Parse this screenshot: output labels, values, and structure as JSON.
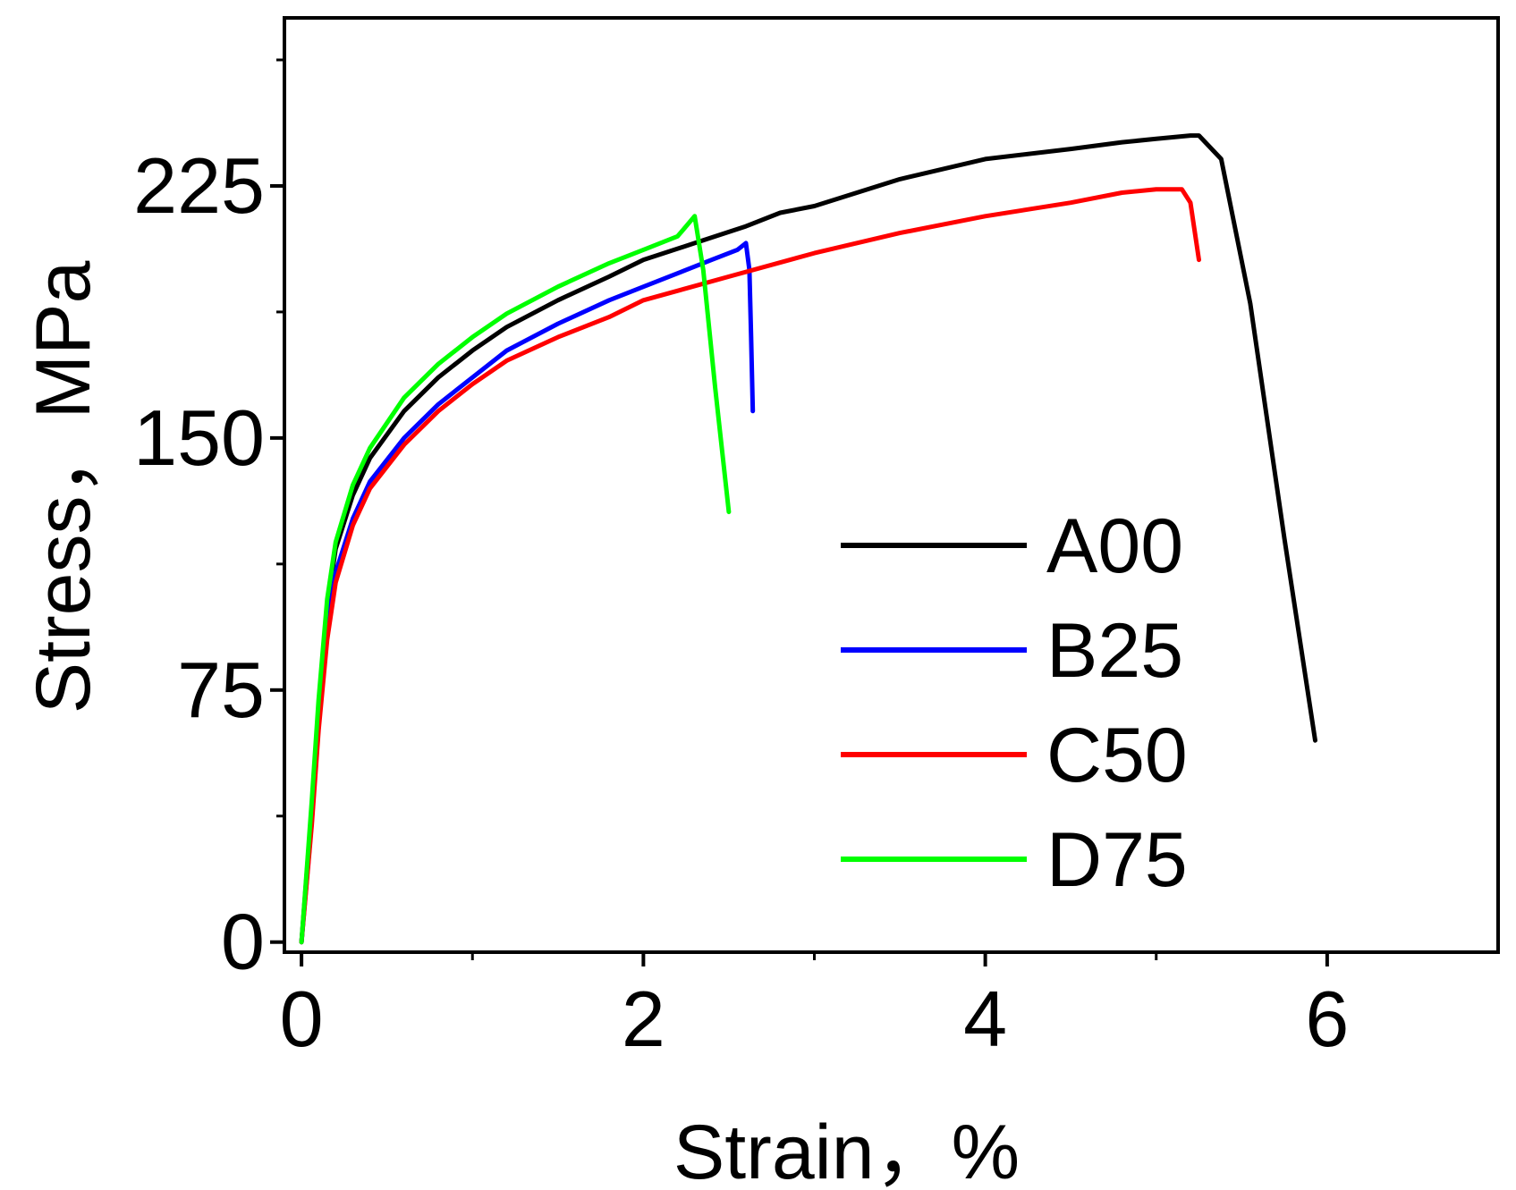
{
  "chart_data": {
    "type": "line",
    "title": "",
    "xlabel": "Strain，%",
    "ylabel": "Stress，MPa",
    "xlim": [
      -0.1,
      7.0
    ],
    "ylim": [
      -3,
      275
    ],
    "x_ticks": [
      0,
      2,
      4,
      6
    ],
    "x_tick_labels": [
      "0",
      "2",
      "4",
      "6"
    ],
    "x_minor_ticks": [
      1,
      3,
      5
    ],
    "y_ticks": [
      0,
      75,
      150,
      225
    ],
    "y_tick_labels": [
      "0",
      "75",
      "150",
      "225"
    ],
    "y_minor_ticks": [
      37.5,
      112.5,
      187.5,
      262.5
    ],
    "grid": false,
    "legend_position": "center-right",
    "series": [
      {
        "name": "A00",
        "color": "#000000",
        "points": [
          [
            0,
            0
          ],
          [
            0.06,
            40
          ],
          [
            0.1,
            70
          ],
          [
            0.15,
            100
          ],
          [
            0.2,
            117
          ],
          [
            0.3,
            133
          ],
          [
            0.4,
            144
          ],
          [
            0.6,
            158
          ],
          [
            0.8,
            168
          ],
          [
            1.0,
            176
          ],
          [
            1.2,
            183
          ],
          [
            1.5,
            191
          ],
          [
            1.8,
            198
          ],
          [
            2.0,
            203
          ],
          [
            2.3,
            208
          ],
          [
            2.6,
            213
          ],
          [
            2.8,
            217
          ],
          [
            3.0,
            219
          ],
          [
            3.5,
            227
          ],
          [
            4.0,
            233
          ],
          [
            4.5,
            236
          ],
          [
            4.8,
            238
          ],
          [
            5.0,
            239
          ],
          [
            5.2,
            240
          ],
          [
            5.25,
            240
          ],
          [
            5.38,
            233
          ],
          [
            5.55,
            190
          ],
          [
            5.75,
            120
          ],
          [
            5.93,
            60
          ]
        ]
      },
      {
        "name": "B25",
        "color": "#0000ff",
        "points": [
          [
            0,
            0
          ],
          [
            0.06,
            36
          ],
          [
            0.1,
            65
          ],
          [
            0.15,
            93
          ],
          [
            0.2,
            110
          ],
          [
            0.3,
            126
          ],
          [
            0.4,
            137
          ],
          [
            0.6,
            150
          ],
          [
            0.8,
            160
          ],
          [
            1.0,
            168
          ],
          [
            1.2,
            176
          ],
          [
            1.5,
            184
          ],
          [
            1.8,
            191
          ],
          [
            2.0,
            195
          ],
          [
            2.2,
            199
          ],
          [
            2.4,
            203
          ],
          [
            2.55,
            206
          ],
          [
            2.6,
            208
          ],
          [
            2.62,
            200
          ],
          [
            2.63,
            180
          ],
          [
            2.64,
            158
          ]
        ]
      },
      {
        "name": "C50",
        "color": "#ff0000",
        "points": [
          [
            0,
            0
          ],
          [
            0.06,
            35
          ],
          [
            0.1,
            63
          ],
          [
            0.15,
            90
          ],
          [
            0.2,
            107
          ],
          [
            0.3,
            124
          ],
          [
            0.4,
            135
          ],
          [
            0.6,
            148
          ],
          [
            0.8,
            158
          ],
          [
            1.0,
            166
          ],
          [
            1.2,
            173
          ],
          [
            1.5,
            180
          ],
          [
            1.8,
            186
          ],
          [
            2.0,
            191
          ],
          [
            2.5,
            198
          ],
          [
            3.0,
            205
          ],
          [
            3.5,
            211
          ],
          [
            4.0,
            216
          ],
          [
            4.5,
            220
          ],
          [
            4.8,
            223
          ],
          [
            5.0,
            224
          ],
          [
            5.15,
            224
          ],
          [
            5.2,
            220
          ],
          [
            5.25,
            203
          ]
        ]
      },
      {
        "name": "D75",
        "color": "#00ff00",
        "points": [
          [
            0,
            0
          ],
          [
            0.06,
            42
          ],
          [
            0.1,
            72
          ],
          [
            0.15,
            102
          ],
          [
            0.2,
            119
          ],
          [
            0.3,
            136
          ],
          [
            0.4,
            147
          ],
          [
            0.6,
            162
          ],
          [
            0.8,
            172
          ],
          [
            1.0,
            180
          ],
          [
            1.2,
            187
          ],
          [
            1.5,
            195
          ],
          [
            1.8,
            202
          ],
          [
            2.0,
            206
          ],
          [
            2.2,
            210
          ],
          [
            2.3,
            216
          ],
          [
            2.35,
            200
          ],
          [
            2.42,
            165
          ],
          [
            2.5,
            128
          ]
        ]
      }
    ]
  }
}
